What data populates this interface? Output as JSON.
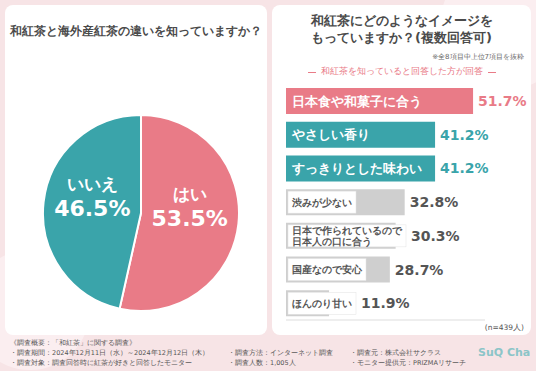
{
  "chart_data": [
    {
      "type": "pie",
      "title": "和紅茶と海外産紅茶の違いを知っていますか？",
      "categories": [
        "はい",
        "いいえ"
      ],
      "values": [
        53.5,
        46.5
      ],
      "value_labels": [
        "53.5%",
        "46.5%"
      ],
      "colors": [
        "#e97b87",
        "#3aa4aa"
      ],
      "data_labels": true
    },
    {
      "type": "bar",
      "title": "和紅茶にどのようなイメージを\nもっていますか？(複数回答可)",
      "subtitle": "和紅茶を知っていると回答した方が回答",
      "annotations": [
        "※全8項目中上位7項目を抜粋",
        "(n=439人)"
      ],
      "orientation": "horizontal",
      "categories": [
        "日本食や和菓子に合う",
        "やさしい香り",
        "すっきりとした味わい",
        "渋みが少ない",
        "日本で作られているので\n日本人の口に合う",
        "国産なので安心",
        "ほんのり甘い"
      ],
      "values": [
        51.7,
        41.2,
        41.2,
        32.8,
        30.3,
        28.7,
        11.9
      ],
      "value_labels": [
        "51.7%",
        "41.2%",
        "41.2%",
        "32.8%",
        "30.3%",
        "28.7%",
        "11.9%"
      ],
      "colors": [
        "#e97b87",
        "#3aa4aa",
        "#3aa4aa",
        "#cfcfcf",
        "#cfcfcf",
        "#cfcfcf",
        "#cfcfcf"
      ],
      "xlim": [
        0,
        55
      ],
      "data_labels": true,
      "tick_labels": false,
      "grid": false
    }
  ],
  "survey": {
    "heading": "《調査概要：「和紅茶」に関する調査》",
    "items": [
      "・調査期間：2024年12月11日（水）～2024年12月12日（木）",
      "・調査方法：インターネット調査",
      "・調査元：株式会社サクラス",
      "・調査対象：調査回答時に紅茶が好きと回答したモニター",
      "・調査人数：1,005人",
      "・モニター提供元：PRIZMAリサーチ"
    ]
  },
  "logo": "SuQ Cha"
}
